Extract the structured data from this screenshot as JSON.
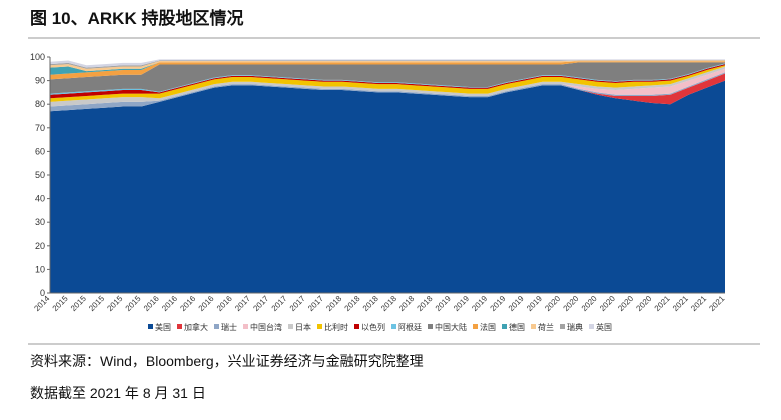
{
  "chart_data": {
    "type": "stacked_area",
    "title": "图 10、ARKK 持股地区情况",
    "source": "资料来源：Wind，Bloomberg，兴业证券经济与金融研究院整理",
    "note": "数据截至 2021 年 8 月 31 日",
    "categories": [
      "2014",
      "2015",
      "2015",
      "2015",
      "2015",
      "2015",
      "2016",
      "2016",
      "2016",
      "2016",
      "2016",
      "2017",
      "2017",
      "2017",
      "2017",
      "2017",
      "2018",
      "2018",
      "2018",
      "2018",
      "2018",
      "2018",
      "2019",
      "2019",
      "2019",
      "2019",
      "2019",
      "2019",
      "2020",
      "2020",
      "2020",
      "2020",
      "2020",
      "2020",
      "2021",
      "2021",
      "2021",
      "2021"
    ],
    "ylim": [
      0,
      100
    ],
    "yticks": [
      0,
      10,
      20,
      30,
      40,
      50,
      60,
      70,
      80,
      90,
      100
    ],
    "series": [
      {
        "name": "美国",
        "color": "#0b4a95",
        "values": [
          77,
          77.5,
          78,
          78.5,
          79,
          79,
          81,
          83,
          85,
          87,
          88,
          88,
          87.5,
          87,
          86.5,
          86,
          86,
          85.5,
          85,
          85,
          84.5,
          84,
          83.5,
          83,
          83,
          85,
          86.5,
          88,
          88,
          86,
          84,
          82.5,
          81.5,
          80.5,
          80,
          84,
          87,
          90
        ]
      },
      {
        "name": "加拿大",
        "color": "#e0353b",
        "values": [
          0,
          0,
          0,
          0,
          0,
          0,
          0,
          0,
          0,
          0,
          0,
          0,
          0,
          0,
          0,
          0,
          0,
          0,
          0,
          0,
          0,
          0,
          0,
          0,
          0,
          0,
          0,
          0,
          0,
          0,
          0.5,
          1,
          2,
          3,
          4,
          3,
          3,
          3
        ]
      },
      {
        "name": "瑞士",
        "color": "#8fa6c6",
        "values": [
          2,
          2,
          2,
          2,
          2,
          2,
          0.5,
          0.5,
          0.5,
          0.5,
          0.5,
          0.5,
          0.5,
          0.5,
          0.5,
          0.5,
          0.5,
          0.5,
          0.5,
          0.5,
          0.5,
          0.5,
          0.5,
          0.5,
          0.5,
          0.5,
          0.5,
          0.5,
          0.5,
          0.5,
          0.5,
          0.5,
          0.5,
          0.5,
          0.5,
          0.5,
          0.5,
          0.5
        ]
      },
      {
        "name": "中国台湾",
        "color": "#f3bfc8",
        "values": [
          0,
          0,
          0,
          0,
          0,
          0,
          0,
          0,
          0,
          0,
          0,
          0,
          0,
          0,
          0,
          0,
          0,
          0,
          0,
          0,
          0,
          0,
          0,
          0,
          0,
          0,
          0,
          0,
          0,
          1,
          1.5,
          2,
          2.5,
          3,
          3,
          2.5,
          2,
          1.5
        ]
      },
      {
        "name": "日本",
        "color": "#c9c9c9",
        "values": [
          2,
          2,
          2,
          2,
          2,
          2,
          1,
          1,
          1,
          1,
          1,
          1,
          1,
          1,
          1,
          1,
          1,
          1,
          1,
          1,
          1,
          1,
          1,
          1,
          1,
          1,
          1,
          1,
          1,
          1,
          1,
          1,
          1,
          1,
          1,
          1,
          1,
          1
        ]
      },
      {
        "name": "比利时",
        "color": "#f2c300",
        "values": [
          1.5,
          1.5,
          1.5,
          1.5,
          1.5,
          1.5,
          2,
          2,
          2,
          2,
          2,
          2,
          2,
          2,
          2,
          2,
          2,
          2,
          2,
          2,
          2,
          2,
          2,
          2,
          2,
          2,
          2,
          2,
          2,
          2,
          2,
          2,
          2,
          1.5,
          1.5,
          1,
          1,
          0.5
        ]
      },
      {
        "name": "以色列",
        "color": "#c00000",
        "values": [
          1.5,
          1.5,
          1.5,
          1.5,
          1.5,
          1.5,
          0.5,
          0.5,
          0.5,
          0.5,
          0.5,
          0.5,
          0.5,
          0.5,
          0.5,
          0.5,
          0.5,
          0.5,
          0.5,
          0.5,
          0.5,
          0.5,
          0.5,
          0.5,
          0.5,
          0.5,
          0.5,
          0.5,
          0.5,
          0.5,
          0.5,
          0.5,
          0.5,
          0.5,
          0.5,
          0.5,
          0.5,
          0.5
        ]
      },
      {
        "name": "阿根廷",
        "color": "#6cc3e3",
        "values": [
          0.5,
          0.5,
          0.5,
          0.5,
          0.5,
          0.5,
          0.3,
          0.3,
          0.3,
          0.3,
          0.3,
          0.3,
          0.3,
          0.3,
          0.3,
          0.3,
          0.3,
          0.3,
          0.3,
          0.3,
          0.3,
          0.3,
          0.3,
          0.3,
          0.3,
          0.3,
          0.3,
          0.3,
          0.3,
          0.3,
          0.3,
          0.3,
          0.3,
          0.3,
          0.3,
          0.3,
          0.3,
          0.3
        ]
      },
      {
        "name": "中国大陆",
        "color": "#7f7f7f",
        "values": [
          6,
          6,
          6,
          6,
          6,
          6,
          11.5,
          9.5,
          7.5,
          5.5,
          4.5,
          4.5,
          5,
          5.5,
          6,
          6.5,
          6.5,
          7,
          7.5,
          7.5,
          8,
          8.5,
          9,
          9.5,
          9.5,
          7.5,
          6,
          4.5,
          4.5,
          6.4,
          7.4,
          7.9,
          7.4,
          7.4,
          6.9,
          4.9,
          2.4,
          0.4
        ]
      },
      {
        "name": "法国",
        "color": "#f4a142",
        "values": [
          2,
          2,
          2,
          2,
          2,
          2,
          1,
          1,
          1,
          1,
          1,
          1,
          1,
          1,
          1,
          1,
          1,
          1,
          1,
          1,
          1,
          1,
          1,
          1,
          1,
          1,
          1,
          1,
          1,
          0.5,
          0.5,
          0.5,
          0.5,
          0.5,
          0.5,
          0.5,
          0.5,
          0.5
        ]
      },
      {
        "name": "德国",
        "color": "#3fa2b3",
        "values": [
          3,
          3,
          0.5,
          0.5,
          0.5,
          0.5,
          0,
          0,
          0,
          0,
          0,
          0,
          0,
          0,
          0,
          0,
          0,
          0,
          0,
          0,
          0,
          0,
          0,
          0,
          0,
          0,
          0,
          0,
          0,
          0,
          0,
          0,
          0,
          0,
          0,
          0,
          0,
          0
        ]
      },
      {
        "name": "荷兰",
        "color": "#f8c98f",
        "values": [
          1,
          1,
          1,
          1,
          1,
          1,
          0.5,
          0.5,
          0.5,
          0.5,
          0.5,
          0.5,
          0.5,
          0.5,
          0.5,
          0.5,
          0.5,
          0.5,
          0.5,
          0.5,
          0.5,
          0.5,
          0.5,
          0.5,
          0.5,
          0.5,
          0.5,
          0.5,
          0.5,
          0.3,
          0.3,
          0.3,
          0.3,
          0.3,
          0.3,
          0.3,
          0.3,
          0.3
        ]
      },
      {
        "name": "瑞典",
        "color": "#a3a3a3",
        "values": [
          0.5,
          0.5,
          0.5,
          0.5,
          0.5,
          0.5,
          0.2,
          0.2,
          0.2,
          0.2,
          0.2,
          0.2,
          0.2,
          0.2,
          0.2,
          0.2,
          0.2,
          0.2,
          0.2,
          0.2,
          0.2,
          0.2,
          0.2,
          0.2,
          0.2,
          0.2,
          0.2,
          0.2,
          0.2,
          0.2,
          0.2,
          0.2,
          0.2,
          0.2,
          0.2,
          0.2,
          0.2,
          0.2
        ]
      },
      {
        "name": "英国",
        "color": "#d3d5e4",
        "values": [
          1,
          1,
          1,
          1,
          1,
          1,
          0.5,
          0.5,
          0.5,
          0.5,
          0.5,
          0.5,
          0.5,
          0.5,
          0.5,
          0.5,
          0.5,
          0.5,
          0.5,
          0.5,
          0.5,
          0.5,
          0.5,
          0.5,
          0.5,
          0.5,
          0.5,
          0.5,
          0.5,
          0.3,
          0.3,
          0.3,
          0.3,
          0.3,
          0.3,
          0.3,
          0.3,
          0.3
        ]
      }
    ]
  }
}
